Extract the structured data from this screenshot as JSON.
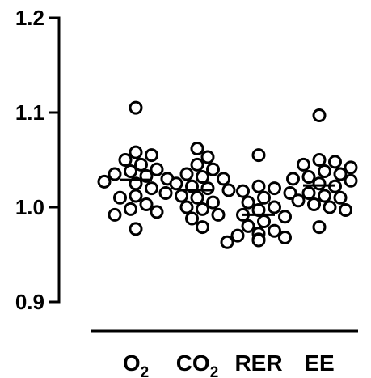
{
  "chart_data": {
    "type": "scatter",
    "subtype": "dot-plot-with-mean",
    "title": "",
    "xlabel": "",
    "ylabel": "",
    "ylim": [
      0.9,
      1.2
    ],
    "yticks": [
      "0.9",
      "1.0",
      "1.1",
      "1.2"
    ],
    "categories": [
      {
        "label": "O",
        "subscript": "2"
      },
      {
        "label": "CO",
        "subscript": "2"
      },
      {
        "label": "RER",
        "subscript": ""
      },
      {
        "label": "EE",
        "subscript": ""
      }
    ],
    "series": [
      {
        "category": "O2",
        "mean": 1.029,
        "values": [
          1.105,
          1.058,
          1.055,
          1.05,
          1.045,
          1.04,
          1.038,
          1.035,
          1.033,
          1.03,
          1.027,
          1.025,
          1.02,
          1.012,
          1.01,
          1.003,
          0.998,
          0.995,
          0.992,
          0.977
        ]
      },
      {
        "category": "CO2",
        "mean": 1.018,
        "values": [
          1.062,
          1.053,
          1.045,
          1.04,
          1.035,
          1.032,
          1.03,
          1.025,
          1.022,
          1.02,
          1.018,
          1.015,
          1.012,
          1.01,
          1.005,
          1.0,
          0.998,
          0.992,
          0.988,
          0.979
        ]
      },
      {
        "category": "RER",
        "mean": 0.992,
        "values": [
          1.055,
          1.022,
          1.02,
          1.017,
          1.015,
          1.01,
          1.005,
          1.0,
          0.997,
          0.992,
          0.99,
          0.985,
          0.98,
          0.975,
          0.972,
          0.97,
          0.968,
          0.966,
          0.965,
          0.963
        ]
      },
      {
        "category": "EE",
        "mean": 1.023,
        "values": [
          1.097,
          1.05,
          1.048,
          1.045,
          1.042,
          1.038,
          1.035,
          1.032,
          1.03,
          1.028,
          1.025,
          1.022,
          1.015,
          1.012,
          1.01,
          1.007,
          1.003,
          1.0,
          0.997,
          0.979
        ]
      }
    ]
  }
}
